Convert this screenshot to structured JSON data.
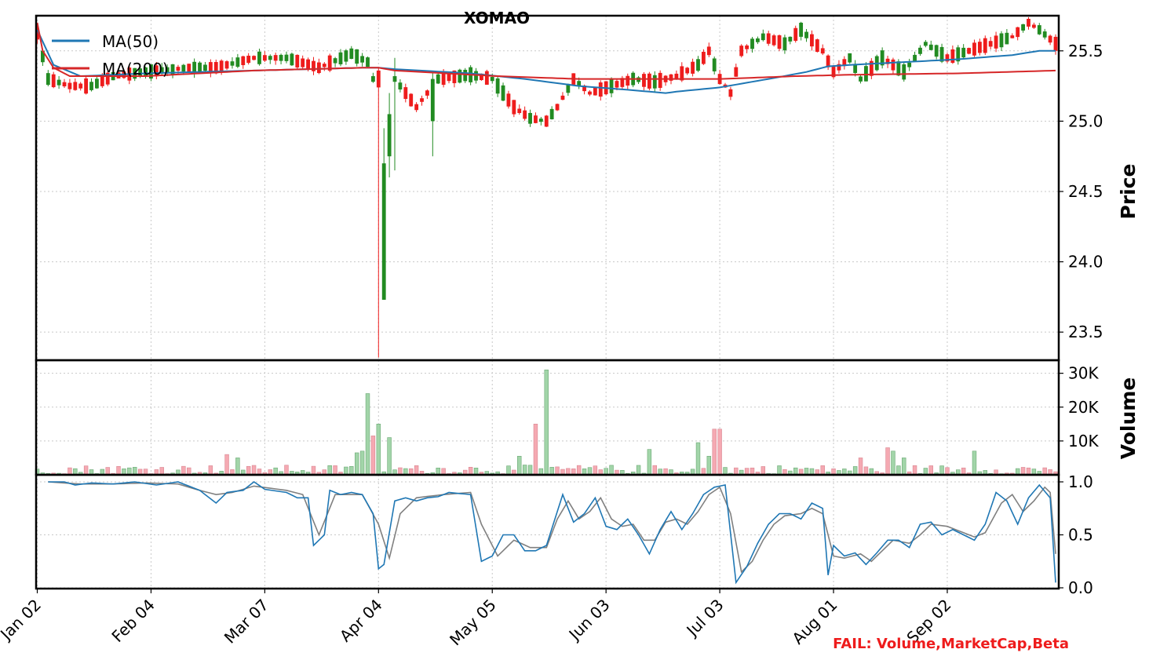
{
  "title": "XOMAO",
  "fail_message": "FAIL: Volume,MarketCap,Beta",
  "colors": {
    "up": "#228B22",
    "down": "#EE1C1C",
    "volume_up": "#A2D5A9",
    "volume_down": "#F5A9B2",
    "ma50": "#1f77b4",
    "ma200": "#d62728",
    "stoch_k": "#1f77b4",
    "stoch_d": "#808080",
    "grid": "#c8c8c8"
  },
  "chart_data": {
    "type": "candlestick",
    "x_ticks": [
      "Jan 02",
      "Feb 04",
      "Mar 07",
      "Apr 04",
      "May 05",
      "Jun 03",
      "Jul 03",
      "Aug 01",
      "Sep 02"
    ],
    "x_tick_positions": [
      0,
      21,
      42,
      63,
      84,
      105,
      126,
      147,
      168
    ],
    "n_bars": 189,
    "price_panel": {
      "ylabel": "Price",
      "ylim": [
        23.3,
        25.75
      ],
      "yticks": [
        23.5,
        24.0,
        24.5,
        25.0,
        25.5
      ],
      "ytick_labels": [
        "23.5",
        "24.0",
        "24.5",
        "25.0",
        "25.5"
      ],
      "legend": [
        "MA(50)",
        "MA(200)"
      ],
      "legend_position": "top-left",
      "anchors": [
        [
          0,
          25.62
        ],
        [
          2,
          25.3
        ],
        [
          6,
          25.25
        ],
        [
          10,
          25.25
        ],
        [
          14,
          25.32
        ],
        [
          20,
          25.35
        ],
        [
          28,
          25.38
        ],
        [
          33,
          25.38
        ],
        [
          40,
          25.45
        ],
        [
          46,
          25.45
        ],
        [
          52,
          25.38
        ],
        [
          58,
          25.48
        ],
        [
          61,
          25.42
        ],
        [
          62,
          25.3
        ],
        [
          63,
          25.2
        ],
        [
          64,
          24.6
        ],
        [
          65,
          24.9
        ],
        [
          66,
          25.3
        ],
        [
          68,
          25.2
        ],
        [
          70,
          25.1
        ],
        [
          72,
          25.2
        ],
        [
          74,
          25.3
        ],
        [
          80,
          25.33
        ],
        [
          84,
          25.3
        ],
        [
          86,
          25.2
        ],
        [
          88,
          25.1
        ],
        [
          91,
          25.02
        ],
        [
          94,
          25.0
        ],
        [
          96,
          25.1
        ],
        [
          99,
          25.3
        ],
        [
          102,
          25.2
        ],
        [
          106,
          25.25
        ],
        [
          110,
          25.3
        ],
        [
          114,
          25.28
        ],
        [
          118,
          25.32
        ],
        [
          122,
          25.4
        ],
        [
          124,
          25.5
        ],
        [
          126,
          25.3
        ],
        [
          128,
          25.2
        ],
        [
          130,
          25.5
        ],
        [
          134,
          25.6
        ],
        [
          138,
          25.55
        ],
        [
          141,
          25.65
        ],
        [
          145,
          25.5
        ],
        [
          147,
          25.35
        ],
        [
          150,
          25.45
        ],
        [
          152,
          25.3
        ],
        [
          156,
          25.45
        ],
        [
          160,
          25.35
        ],
        [
          164,
          25.55
        ],
        [
          168,
          25.45
        ],
        [
          172,
          25.5
        ],
        [
          176,
          25.55
        ],
        [
          180,
          25.6
        ],
        [
          183,
          25.7
        ],
        [
          185,
          25.65
        ],
        [
          188,
          25.55
        ]
      ],
      "ma50_anchors": [
        [
          0,
          25.65
        ],
        [
          3,
          25.4
        ],
        [
          8,
          25.32
        ],
        [
          20,
          25.34
        ],
        [
          40,
          25.36
        ],
        [
          60,
          25.38
        ],
        [
          63,
          25.38
        ],
        [
          66,
          25.37
        ],
        [
          80,
          25.34
        ],
        [
          90,
          25.3
        ],
        [
          100,
          25.25
        ],
        [
          110,
          25.22
        ],
        [
          116,
          25.2
        ],
        [
          118,
          25.21
        ],
        [
          126,
          25.24
        ],
        [
          135,
          25.3
        ],
        [
          142,
          25.35
        ],
        [
          146,
          25.39
        ],
        [
          150,
          25.4
        ],
        [
          160,
          25.42
        ],
        [
          170,
          25.44
        ],
        [
          180,
          25.47
        ],
        [
          185,
          25.5
        ],
        [
          188,
          25.5
        ]
      ],
      "ma200_anchors": [
        [
          0,
          25.7
        ],
        [
          1,
          25.5
        ],
        [
          3,
          25.38
        ],
        [
          6,
          25.32
        ],
        [
          20,
          25.32
        ],
        [
          40,
          25.36
        ],
        [
          60,
          25.38
        ],
        [
          63,
          25.38
        ],
        [
          66,
          25.36
        ],
        [
          85,
          25.32
        ],
        [
          100,
          25.3
        ],
        [
          126,
          25.3
        ],
        [
          140,
          25.32
        ],
        [
          150,
          25.33
        ],
        [
          170,
          25.34
        ],
        [
          188,
          25.36
        ]
      ],
      "spikes": [
        {
          "index": 63,
          "open": 25.24,
          "close": 25.36,
          "low": 23.32,
          "high": 25.38,
          "dir": "down"
        },
        {
          "index": 64,
          "open": 24.7,
          "close": 23.73,
          "low": 23.73,
          "high": 24.95,
          "dir": "up"
        },
        {
          "index": 65,
          "open": 25.05,
          "close": 24.75,
          "low": 24.6,
          "high": 25.2,
          "dir": "up"
        },
        {
          "index": 66,
          "open": 25.28,
          "close": 25.32,
          "low": 24.65,
          "high": 25.45,
          "dir": "up"
        },
        {
          "index": 73,
          "open": 25.0,
          "close": 25.3,
          "low": 24.75,
          "high": 25.35,
          "dir": "up"
        }
      ]
    },
    "volume_panel": {
      "ylabel": "Volume",
      "ylim": [
        0,
        32000
      ],
      "yticks": [
        10000,
        20000,
        30000
      ],
      "ytick_labels": [
        "10K",
        "20K",
        "30K"
      ],
      "spikes": [
        [
          61,
          24000,
          "up"
        ],
        [
          62,
          11500,
          "down"
        ],
        [
          63,
          15000,
          "up"
        ],
        [
          65,
          11000,
          "up"
        ],
        [
          59,
          6500,
          "up"
        ],
        [
          60,
          7000,
          "up"
        ],
        [
          92,
          15000,
          "down"
        ],
        [
          94,
          31000,
          "up"
        ],
        [
          89,
          5500,
          "up"
        ],
        [
          113,
          7500,
          "up"
        ],
        [
          122,
          9500,
          "up"
        ],
        [
          125,
          13500,
          "down"
        ],
        [
          126,
          13500,
          "down"
        ],
        [
          124,
          5500,
          "up"
        ],
        [
          152,
          5000,
          "down"
        ],
        [
          157,
          8000,
          "down"
        ],
        [
          158,
          7000,
          "up"
        ],
        [
          160,
          5000,
          "up"
        ],
        [
          173,
          7000,
          "up"
        ],
        [
          37,
          5000,
          "up"
        ],
        [
          35,
          6000,
          "down"
        ]
      ]
    },
    "stoch_panel": {
      "ylim": [
        0,
        1.0
      ],
      "yticks": [
        0.0,
        0.5,
        1.0
      ],
      "ytick_labels": [
        "0.0",
        "0.5",
        "1.0"
      ],
      "k_anchors": [
        [
          2,
          1.0
        ],
        [
          5,
          1.0
        ],
        [
          7,
          0.97
        ],
        [
          10,
          0.99
        ],
        [
          14,
          0.98
        ],
        [
          18,
          1.0
        ],
        [
          22,
          0.97
        ],
        [
          26,
          1.0
        ],
        [
          30,
          0.92
        ],
        [
          33,
          0.8
        ],
        [
          35,
          0.9
        ],
        [
          38,
          0.92
        ],
        [
          40,
          1.0
        ],
        [
          42,
          0.93
        ],
        [
          46,
          0.9
        ],
        [
          48,
          0.85
        ],
        [
          50,
          0.85
        ],
        [
          51,
          0.4
        ],
        [
          53,
          0.5
        ],
        [
          54,
          0.92
        ],
        [
          56,
          0.88
        ],
        [
          58,
          0.9
        ],
        [
          60,
          0.88
        ],
        [
          62,
          0.7
        ],
        [
          63,
          0.18
        ],
        [
          64,
          0.22
        ],
        [
          66,
          0.82
        ],
        [
          68,
          0.85
        ],
        [
          70,
          0.82
        ],
        [
          72,
          0.85
        ],
        [
          74,
          0.86
        ],
        [
          76,
          0.9
        ],
        [
          80,
          0.88
        ],
        [
          82,
          0.25
        ],
        [
          84,
          0.3
        ],
        [
          86,
          0.5
        ],
        [
          88,
          0.5
        ],
        [
          90,
          0.35
        ],
        [
          92,
          0.35
        ],
        [
          94,
          0.4
        ],
        [
          97,
          0.88
        ],
        [
          99,
          0.62
        ],
        [
          101,
          0.7
        ],
        [
          103,
          0.85
        ],
        [
          105,
          0.58
        ],
        [
          107,
          0.55
        ],
        [
          109,
          0.65
        ],
        [
          111,
          0.5
        ],
        [
          113,
          0.32
        ],
        [
          115,
          0.55
        ],
        [
          117,
          0.72
        ],
        [
          119,
          0.55
        ],
        [
          121,
          0.7
        ],
        [
          123,
          0.88
        ],
        [
          125,
          0.95
        ],
        [
          127,
          0.97
        ],
        [
          129,
          0.05
        ],
        [
          131,
          0.2
        ],
        [
          133,
          0.42
        ],
        [
          135,
          0.6
        ],
        [
          137,
          0.7
        ],
        [
          139,
          0.7
        ],
        [
          141,
          0.65
        ],
        [
          143,
          0.8
        ],
        [
          145,
          0.75
        ],
        [
          146,
          0.12
        ],
        [
          147,
          0.4
        ],
        [
          149,
          0.3
        ],
        [
          151,
          0.33
        ],
        [
          153,
          0.22
        ],
        [
          155,
          0.33
        ],
        [
          157,
          0.45
        ],
        [
          159,
          0.45
        ],
        [
          161,
          0.38
        ],
        [
          163,
          0.6
        ],
        [
          165,
          0.62
        ],
        [
          167,
          0.5
        ],
        [
          169,
          0.55
        ],
        [
          171,
          0.5
        ],
        [
          173,
          0.45
        ],
        [
          175,
          0.6
        ],
        [
          177,
          0.9
        ],
        [
          179,
          0.82
        ],
        [
          181,
          0.6
        ],
        [
          183,
          0.85
        ],
        [
          185,
          0.97
        ],
        [
          187,
          0.85
        ],
        [
          188,
          0.05
        ]
      ],
      "d_anchors": [
        [
          2,
          1.0
        ],
        [
          8,
          0.98
        ],
        [
          14,
          0.98
        ],
        [
          20,
          0.99
        ],
        [
          26,
          0.98
        ],
        [
          30,
          0.92
        ],
        [
          33,
          0.88
        ],
        [
          36,
          0.9
        ],
        [
          40,
          0.96
        ],
        [
          46,
          0.92
        ],
        [
          49,
          0.88
        ],
        [
          52,
          0.5
        ],
        [
          55,
          0.88
        ],
        [
          60,
          0.88
        ],
        [
          63,
          0.6
        ],
        [
          65,
          0.28
        ],
        [
          67,
          0.7
        ],
        [
          70,
          0.85
        ],
        [
          75,
          0.88
        ],
        [
          80,
          0.9
        ],
        [
          82,
          0.6
        ],
        [
          85,
          0.3
        ],
        [
          88,
          0.45
        ],
        [
          91,
          0.38
        ],
        [
          94,
          0.38
        ],
        [
          96,
          0.65
        ],
        [
          98,
          0.82
        ],
        [
          100,
          0.65
        ],
        [
          102,
          0.72
        ],
        [
          104,
          0.85
        ],
        [
          106,
          0.65
        ],
        [
          108,
          0.58
        ],
        [
          110,
          0.6
        ],
        [
          112,
          0.45
        ],
        [
          114,
          0.45
        ],
        [
          116,
          0.62
        ],
        [
          118,
          0.65
        ],
        [
          120,
          0.6
        ],
        [
          122,
          0.72
        ],
        [
          124,
          0.88
        ],
        [
          126,
          0.95
        ],
        [
          128,
          0.7
        ],
        [
          130,
          0.15
        ],
        [
          132,
          0.25
        ],
        [
          134,
          0.45
        ],
        [
          136,
          0.6
        ],
        [
          138,
          0.68
        ],
        [
          141,
          0.7
        ],
        [
          143,
          0.75
        ],
        [
          145,
          0.7
        ],
        [
          147,
          0.3
        ],
        [
          149,
          0.28
        ],
        [
          152,
          0.32
        ],
        [
          154,
          0.25
        ],
        [
          156,
          0.35
        ],
        [
          158,
          0.45
        ],
        [
          161,
          0.42
        ],
        [
          163,
          0.5
        ],
        [
          165,
          0.6
        ],
        [
          168,
          0.58
        ],
        [
          171,
          0.52
        ],
        [
          173,
          0.48
        ],
        [
          175,
          0.52
        ],
        [
          178,
          0.8
        ],
        [
          180,
          0.88
        ],
        [
          182,
          0.72
        ],
        [
          184,
          0.82
        ],
        [
          186,
          0.95
        ],
        [
          187,
          0.9
        ],
        [
          188,
          0.32
        ]
      ]
    }
  }
}
